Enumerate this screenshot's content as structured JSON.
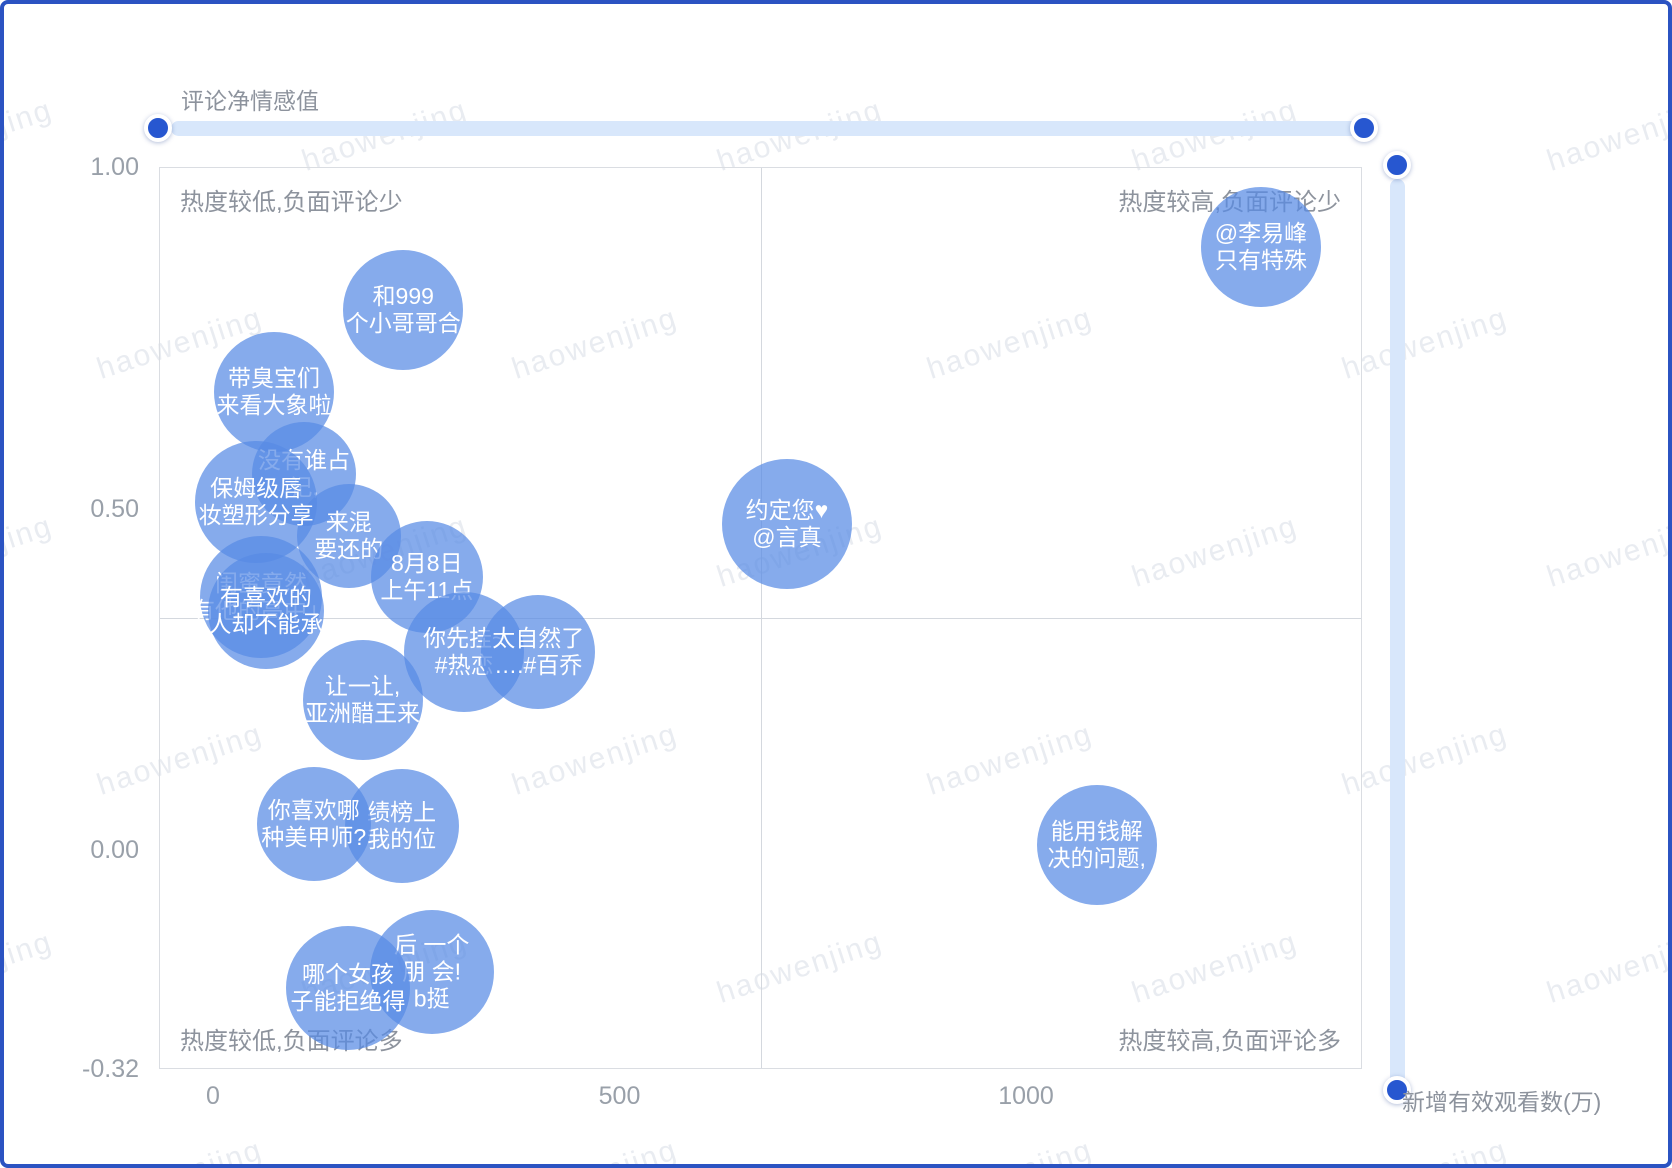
{
  "axis": {
    "y_title": "评论净情感值",
    "x_title": "新增有效观看数(万)",
    "y_ticks": [
      {
        "label": "1.00",
        "value": 1.0
      },
      {
        "label": "0.50",
        "value": 0.5
      },
      {
        "label": "0.00",
        "value": 0.0
      },
      {
        "label": "-0.32",
        "value": -0.32
      }
    ],
    "x_ticks": [
      {
        "label": "0",
        "value": 0
      },
      {
        "label": "500",
        "value": 500
      },
      {
        "label": "1000",
        "value": 1000
      }
    ]
  },
  "quadrants": {
    "top_left": "热度较低,负面评论少",
    "top_right": "热度较高,负面评论少",
    "bottom_left": "热度较低,负面评论多",
    "bottom_right": "热度较高,负面评论多"
  },
  "watermark": "haowenjing",
  "colors": {
    "bubble": "#588AE4",
    "bubble_alpha": 0.72,
    "accent": "#2757D0",
    "scroll_track": "#D8E7FB",
    "divider": "#D4D8DE"
  },
  "chart_data": {
    "type": "scatter",
    "title": "",
    "xlabel": "新增有效观看数(万)",
    "ylabel": "评论净情感值",
    "x_range": [
      -66,
      1413
    ],
    "y_range": [
      -0.32,
      1.0
    ],
    "grid": false,
    "legend": false,
    "quadrant_divider": {
      "x": 674,
      "y": 0.34
    },
    "points": [
      {
        "label": [
          "和999",
          "个小哥哥合"
        ],
        "x": 234,
        "y": 0.79,
        "r": 60
      },
      {
        "label": [
          "带臭宝们",
          "来看大象啦"
        ],
        "x": 75,
        "y": 0.67,
        "r": 60
      },
      {
        "label": [
          "没有谁占",
          "记,"
        ],
        "x": 112,
        "y": 0.55,
        "r": 52
      },
      {
        "label": [
          "来混",
          "要还的"
        ],
        "x": 167,
        "y": 0.46,
        "r": 52
      },
      {
        "label": [
          "保姆级唇",
          "妆塑形分享"
        ],
        "x": 53,
        "y": 0.51,
        "r": 61
      },
      {
        "label": [
          "闺蜜竟然",
          "有他的高中」"
        ],
        "x": 59,
        "y": 0.37,
        "r": 61
      },
      {
        "label": [
          "有喜欢的",
          "人却不能承"
        ],
        "x": 65,
        "y": 0.35,
        "r": 58
      },
      {
        "label": [
          "8月8日",
          "上午11点"
        ],
        "x": 263,
        "y": 0.4,
        "r": 56
      },
      {
        "label": [
          "你先挂~",
          "#热恋"
        ],
        "x": 309,
        "y": 0.29,
        "r": 60
      },
      {
        "label": [
          "太自然了",
          "….#百乔"
        ],
        "x": 400,
        "y": 0.29,
        "r": 57
      },
      {
        "label": [
          "让一让,",
          "亚洲醋王来"
        ],
        "x": 184,
        "y": 0.22,
        "r": 60
      },
      {
        "label": [
          "绩榜上",
          "我的位"
        ],
        "x": 232,
        "y": 0.035,
        "r": 57
      },
      {
        "label": [
          "你喜欢哪",
          "种美甲师?"
        ],
        "x": 124,
        "y": 0.038,
        "r": 57
      },
      {
        "label": [
          "后 一个",
          "朋 会!",
          "b挺"
        ],
        "x": 269,
        "y": -0.179,
        "r": 62
      },
      {
        "label": [
          "哪个女孩",
          "子能拒绝得"
        ],
        "x": 166,
        "y": -0.202,
        "r": 62
      },
      {
        "label": [
          "约定您♥",
          "@言真"
        ],
        "x": 706,
        "y": 0.477,
        "r": 65
      },
      {
        "label": [
          "能用钱解",
          "决的问题,"
        ],
        "x": 1087,
        "y": 0.007,
        "r": 60
      },
      {
        "label": [
          "@李易峰",
          "只有特殊"
        ],
        "x": 1289,
        "y": 0.883,
        "r": 60
      }
    ]
  }
}
